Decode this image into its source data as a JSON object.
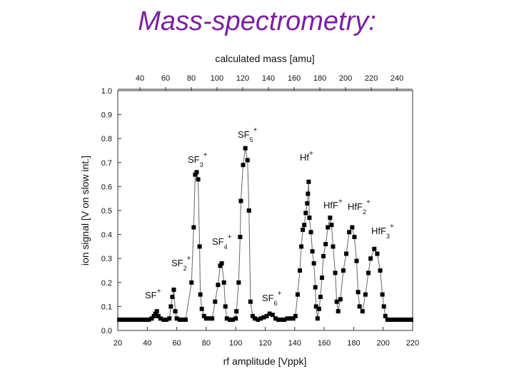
{
  "chart_data": {
    "type": "line",
    "title": "Mass-spectrometry:",
    "xlabel": "rf amplitude [Vppk]",
    "ylabel": "ion signal [V on slow int.]",
    "x2label": "calculated mass [amu]",
    "color": "#000000",
    "title_color": "#7b1fa2",
    "marker": "square",
    "xlim": [
      20,
      220
    ],
    "xticks": [
      20,
      40,
      60,
      80,
      100,
      120,
      140,
      160,
      180,
      200,
      220
    ],
    "x2lim": [
      22.8,
      252.2
    ],
    "x2ticks": [
      40,
      60,
      80,
      100,
      120,
      140,
      160,
      180,
      200,
      220,
      240
    ],
    "ylim": [
      0,
      1
    ],
    "yticks": [
      {
        "value": 0,
        "label": "0.0"
      },
      0.1,
      0.2,
      0.3,
      0.4,
      0.5,
      0.6,
      0.7,
      0.8,
      0.9,
      {
        "value": 1,
        "label": "1.0"
      }
    ],
    "x": [
      21,
      23,
      25,
      27,
      29,
      31,
      33,
      35,
      37,
      39,
      41,
      43,
      44.5,
      45.5,
      46.5,
      47.5,
      49,
      51,
      53,
      55,
      56,
      57,
      58,
      59,
      60,
      62,
      64,
      66,
      70,
      71.5,
      72.5,
      73.5,
      74.5,
      75.5,
      76,
      77,
      78.5,
      80,
      82,
      84,
      86,
      88,
      89.5,
      90.5,
      92,
      93,
      94,
      96,
      98,
      100,
      100.5,
      102,
      103,
      103.5,
      105,
      106.5,
      108,
      109,
      110,
      111.5,
      113,
      115,
      117,
      119,
      121,
      123,
      125,
      127,
      129,
      131,
      133,
      135,
      137,
      139,
      140.5,
      142,
      143.5,
      144.5,
      145.5,
      146.5,
      147.5,
      148.5,
      149,
      149.5,
      150,
      151,
      152,
      153,
      154,
      154.5,
      155.5,
      156.5,
      157.5,
      158.5,
      159.5,
      161,
      162.5,
      164,
      165,
      166,
      167.5,
      168.5,
      169.5,
      171,
      173,
      175,
      177,
      179,
      180.5,
      182,
      183,
      184,
      186,
      188,
      190,
      191.5,
      194,
      196,
      198,
      199.5,
      200.5,
      201.5,
      203,
      205,
      207,
      209,
      211,
      213,
      215,
      217,
      219
    ],
    "values": [
      0.045,
      0.045,
      0.045,
      0.045,
      0.045,
      0.045,
      0.045,
      0.045,
      0.045,
      0.045,
      0.045,
      0.05,
      0.06,
      0.07,
      0.08,
      0.06,
      0.05,
      0.045,
      0.045,
      0.05,
      0.1,
      0.14,
      0.17,
      0.08,
      0.05,
      0.045,
      0.045,
      0.045,
      0.2,
      0.43,
      0.65,
      0.66,
      0.63,
      0.35,
      0.15,
      0.09,
      0.06,
      0.05,
      0.05,
      0.05,
      0.12,
      0.19,
      0.27,
      0.28,
      0.2,
      0.1,
      0.05,
      0.045,
      0.045,
      0.05,
      0.08,
      0.2,
      0.39,
      0.54,
      0.69,
      0.76,
      0.71,
      0.5,
      0.12,
      0.06,
      0.05,
      0.045,
      0.05,
      0.055,
      0.06,
      0.07,
      0.065,
      0.05,
      0.045,
      0.045,
      0.045,
      0.05,
      0.05,
      0.05,
      0.06,
      0.15,
      0.25,
      0.35,
      0.42,
      0.44,
      0.49,
      0.53,
      0.57,
      0.62,
      0.47,
      0.41,
      0.33,
      0.28,
      0.18,
      0.1,
      0.05,
      0.09,
      0.14,
      0.22,
      0.31,
      0.36,
      0.43,
      0.47,
      0.44,
      0.35,
      0.24,
      0.12,
      0.08,
      0.13,
      0.25,
      0.32,
      0.41,
      0.43,
      0.39,
      0.29,
      0.16,
      0.1,
      0.08,
      0.15,
      0.24,
      0.3,
      0.34,
      0.32,
      0.25,
      0.15,
      0.1,
      0.06,
      0.045,
      0.045,
      0.045,
      0.045,
      0.045,
      0.045,
      0.045,
      0.045,
      0.045
    ],
    "annotations": [
      {
        "base": "SF",
        "sup": "+"
      },
      {
        "base": "SF",
        "sub": "2",
        "sup": "+"
      },
      {
        "base": "SF",
        "sub": "3",
        "sup": "+"
      },
      {
        "base": "SF",
        "sub": "4",
        "sup": "+"
      },
      {
        "base": "SF",
        "sub": "5",
        "sup": "+"
      },
      {
        "base": "SF",
        "sub": "6",
        "sup": "+"
      },
      {
        "base": "Hf",
        "sup": "+"
      },
      {
        "base": "HfF",
        "sup": "+"
      },
      {
        "base": "HfF",
        "sub": "2",
        "sup": "+"
      },
      {
        "base": "HfF",
        "sub": "3",
        "sup": "+"
      }
    ]
  }
}
